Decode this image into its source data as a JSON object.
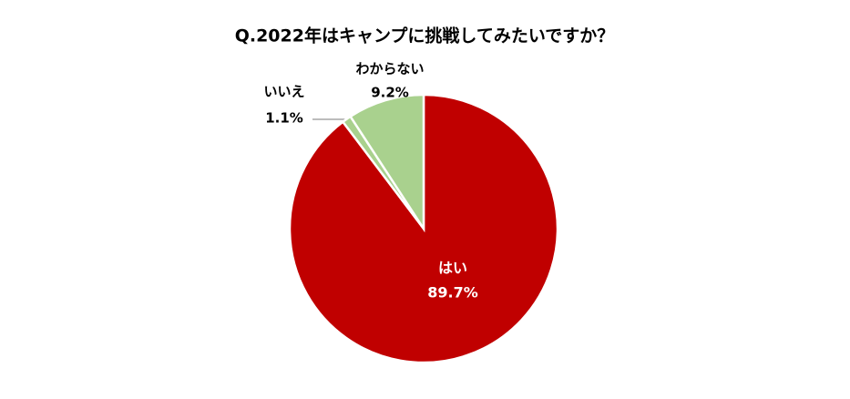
{
  "chart_data": {
    "type": "pie",
    "title": "Q.2022年はキャンプに挑戦してみたいですか？",
    "categories": [
      "はい",
      "いいえ",
      "わからない"
    ],
    "values": [
      89.7,
      1.1,
      9.2
    ],
    "value_labels": [
      "89.7%",
      "1.1%",
      "9.2%"
    ],
    "colors": [
      "#c00000",
      "#a9d18e",
      "#a9d18e"
    ]
  }
}
